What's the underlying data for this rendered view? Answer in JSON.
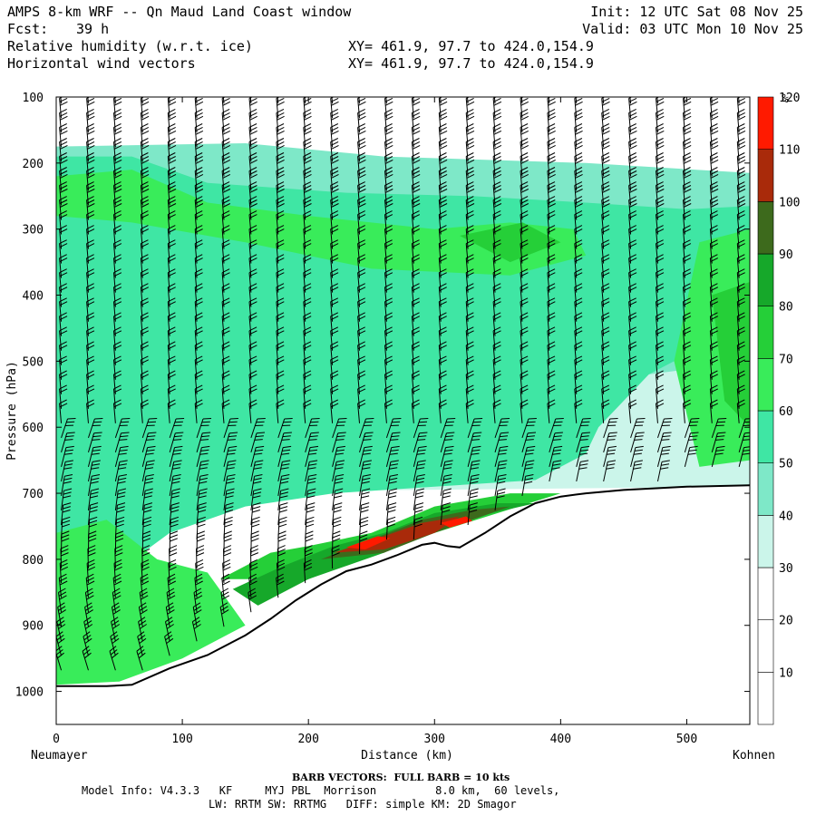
{
  "header": {
    "title_line": "AMPS 8-km WRF -- Qn Maud Land Coast window",
    "fcst_label": "Fcst:",
    "fcst_value": "39 h",
    "field_1": "Relative humidity (w.r.t. ice)",
    "field_2": "Horizontal wind vectors",
    "xy_1": "XY= 461.9, 97.7 to 424.0,154.9",
    "xy_2": "XY= 461.9, 97.7 to 424.0,154.9",
    "init": "Init: 12 UTC Sat 08 Nov 25",
    "valid": "Valid: 03 UTC Mon 10 Nov 25"
  },
  "colors": {
    "scale": [
      "#ffffff",
      "#ffffff",
      "#ffffff",
      "#cbf5ea",
      "#7ee8c8",
      "#3fe6a4",
      "#39ec5a",
      "#25cf38",
      "#16a82a",
      "#3d6a1c",
      "#a92a0a",
      "#ff1a00"
    ],
    "terrain_line": "#000000"
  },
  "chart_data": {
    "type": "cross-section",
    "title": "",
    "xlabel": "Distance (km)",
    "ylabel": "Pressure (hPa)",
    "xlim": [
      0,
      550
    ],
    "ylim": [
      1050,
      100
    ],
    "x_ticks": [
      0,
      100,
      200,
      300,
      400,
      500
    ],
    "y_ticks": [
      100,
      200,
      300,
      400,
      500,
      600,
      700,
      800,
      900,
      1000
    ],
    "x_endpoint_left": "Neumayer",
    "x_endpoint_right": "Kohnen",
    "colorbar": {
      "unit": "%",
      "levels": [
        10,
        20,
        30,
        40,
        50,
        60,
        70,
        80,
        90,
        100,
        110,
        120
      ],
      "label_values": [
        10,
        20,
        30,
        40,
        50,
        60,
        70,
        80,
        90,
        100,
        110,
        120
      ]
    },
    "terrain_surface": {
      "x": [
        0,
        40,
        60,
        90,
        120,
        150,
        170,
        190,
        210,
        230,
        250,
        270,
        290,
        300,
        310,
        320,
        340,
        360,
        380,
        400,
        420,
        450,
        500,
        550
      ],
      "pressure": [
        992,
        992,
        990,
        965,
        945,
        915,
        890,
        862,
        838,
        818,
        808,
        794,
        778,
        775,
        780,
        782,
        760,
        735,
        715,
        705,
        700,
        695,
        690,
        688
      ]
    },
    "annotation": "BARB VECTORS:  FULL BARB = 10 kts"
  },
  "footer": {
    "barb_note": "BARB VECTORS:  FULL BARB = 10 kts",
    "model_line1": "Model Info: V4.3.3   KF     MYJ PBL  Morrison         8.0 km,  60 levels,",
    "model_line2": "LW: RRTM SW: RRTMG   DIFF: simple KM: 2D Smagor"
  }
}
